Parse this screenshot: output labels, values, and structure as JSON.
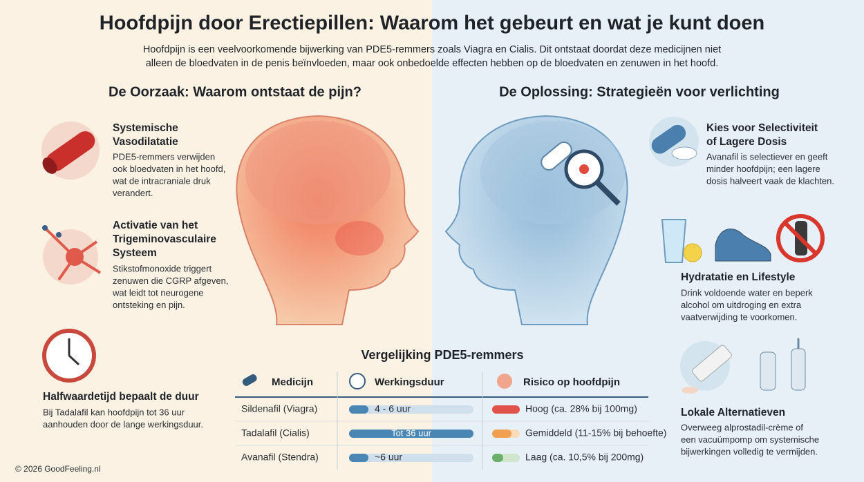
{
  "header": {
    "title": "Hoofdpijn door Erectiepillen: Waarom het gebeurt en wat je kunt doen",
    "intro": [
      "Hoofdpijn is een veelvoorkomende bijwerking van PDE5-remmers zoals Viagra en Cialis. Dit ontstaat doordat deze medicijnen niet",
      "alleen de bloedvaten in de penis beïnvloeden, maar ook onbedoelde effecten hebben op de bloedvaten en zenuwen in het hoofd."
    ]
  },
  "causes": {
    "heading": "De Oorzaak: Waarom ontstaat de pijn?",
    "items": [
      {
        "title": [
          "Systemische",
          "Vasodilatatie"
        ],
        "body": [
          "PDE5-remmers verwijden",
          "ook bloedvaten in het hoofd,",
          "wat de intracraniale druk",
          "verandert."
        ]
      },
      {
        "title": [
          "Activatie van het",
          "Trigeminovasculaire",
          "Systeem"
        ],
        "body": [
          "Stikstofmonoxide triggert",
          "zenuwen die CGRP afgeven,",
          "wat leidt tot neurogene",
          "ontsteking en pijn."
        ]
      },
      {
        "title": [
          "Halfwaardetijd bepaalt de duur"
        ],
        "body": [
          "Bij Tadalafil kan hoofdpijn tot 36 uur",
          "aanhouden door de lange werkingsduur."
        ]
      }
    ]
  },
  "solutions": {
    "heading": "De Oplossing: Strategieën voor verlichting",
    "items": [
      {
        "title": [
          "Kies voor Selectiviteit",
          "of Lagere Dosis"
        ],
        "body": [
          "Avanafil is selectiever en geeft",
          "minder hoofdpijn; een lagere",
          "dosis halveert vaak de klachten."
        ]
      },
      {
        "title": [
          "Hydratatie en Lifestyle"
        ],
        "body": [
          "Drink voldoende water en beperk",
          "alcohol om uitdroging en extra",
          "vaatverwijding te voorkomen."
        ]
      },
      {
        "title": [
          "Lokale Alternatieven"
        ],
        "body": [
          "Overweeg alprostadil-crème of",
          "een vacuümpomp om systemische",
          "bijwerkingen volledig te vermijden."
        ]
      }
    ]
  },
  "table": {
    "title": "Vergelijking PDE5-remmers",
    "columns": [
      "Medicijn",
      "Werkingsduur",
      "Risico op hoofdpijn"
    ],
    "rows": [
      [
        "Sildenafil (Viagra)",
        "4 - 6 uur",
        "Hoog (ca. 28% bij 100mg)"
      ],
      [
        "Tadalafil (Cialis)",
        "Tot 36 uur",
        "Gemiddeld (11-15% bij behoefte)"
      ],
      [
        "Avanafil (Stendra)",
        "~6 uur",
        "Laag (ca. 10,5% bij 200mg)"
      ]
    ]
  },
  "footer": "© 2026 GoodFeeling.nl"
}
